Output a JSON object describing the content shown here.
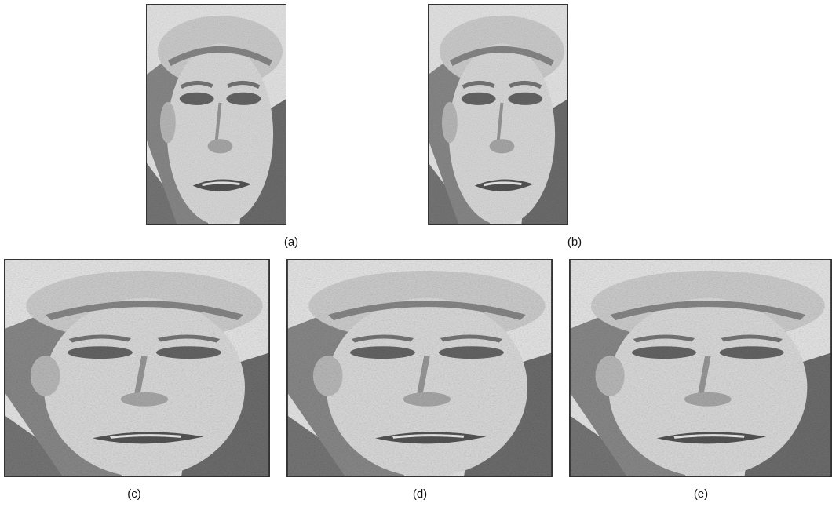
{
  "figure": {
    "panels": [
      {
        "caption": "(a)"
      },
      {
        "caption": "(b)"
      },
      {
        "caption": "(c)"
      },
      {
        "caption": "(d)"
      },
      {
        "caption": "(e)"
      }
    ]
  }
}
